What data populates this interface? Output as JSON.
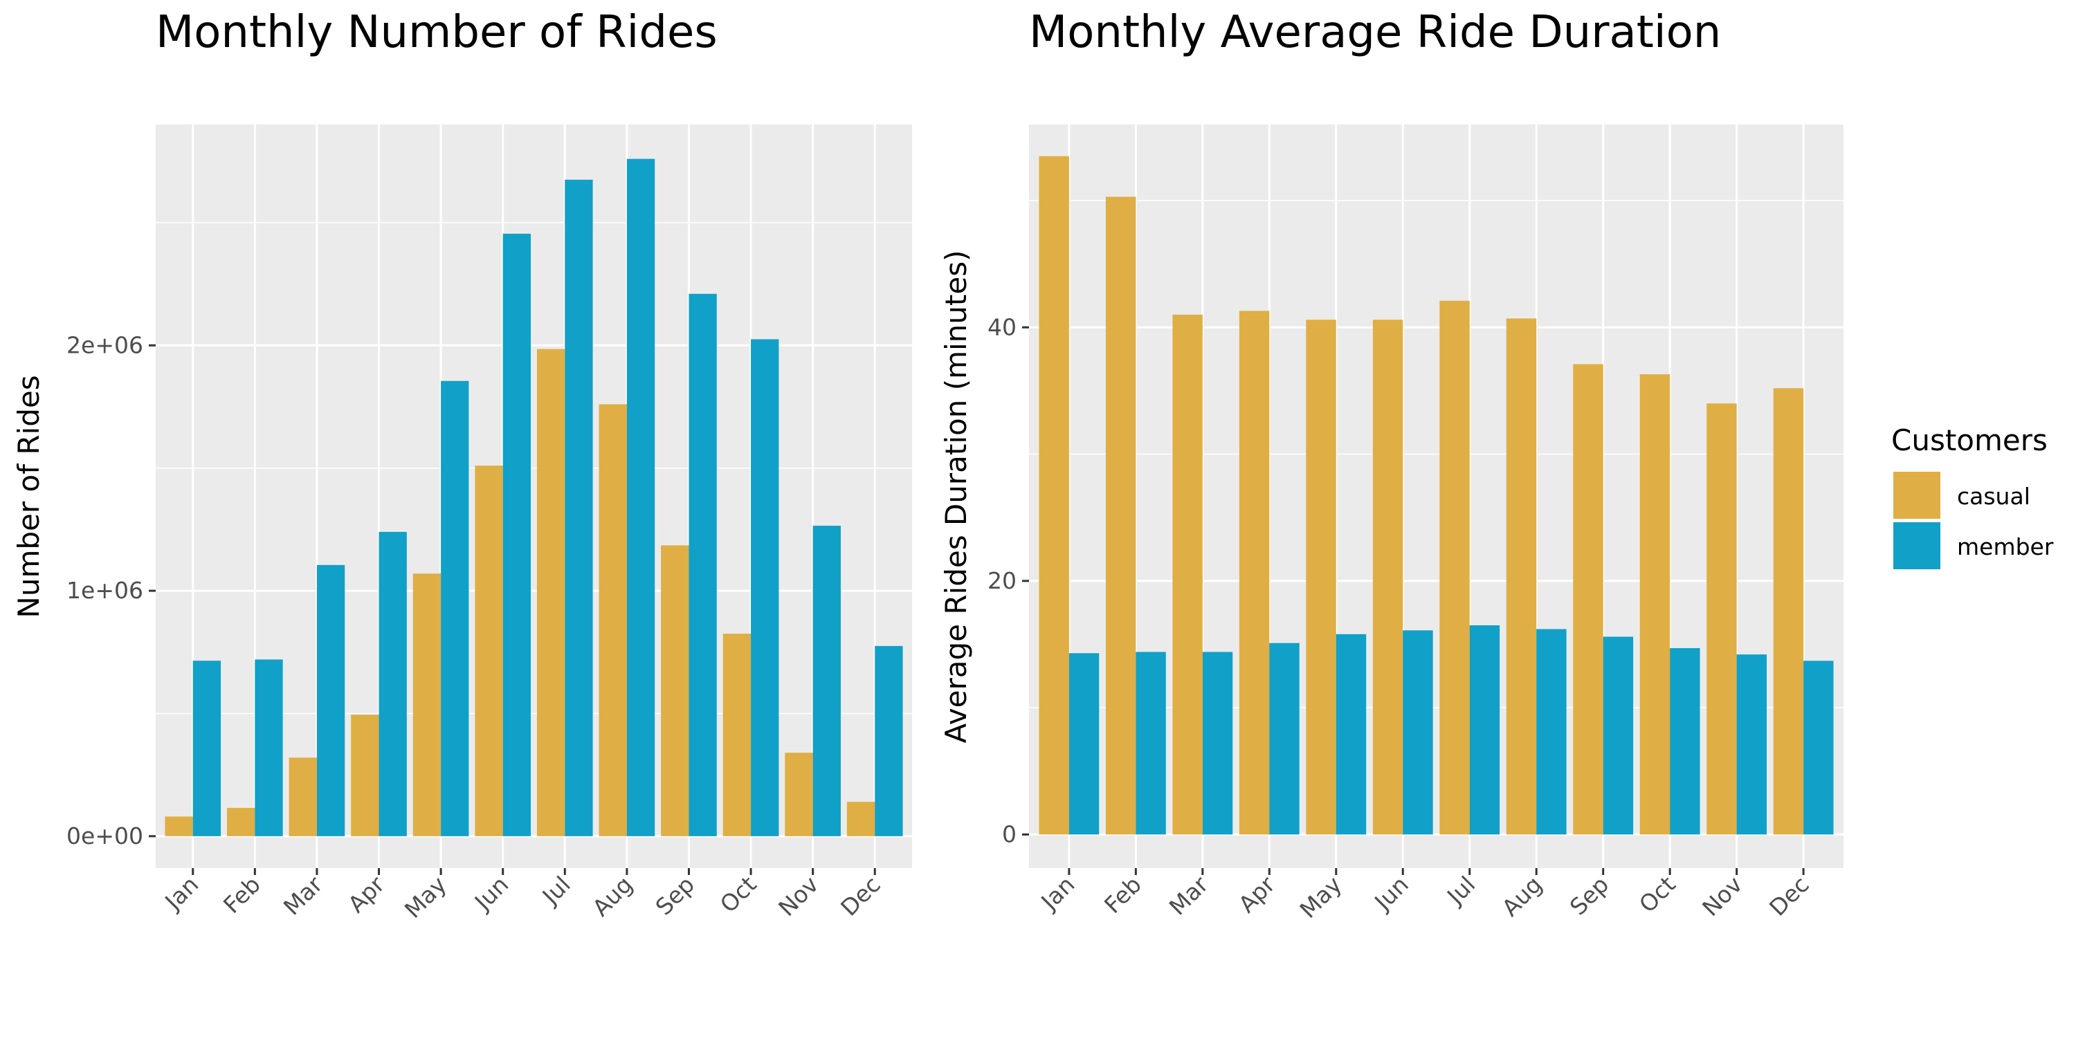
{
  "legend": {
    "title": "Customers",
    "items": [
      {
        "label": "casual",
        "color": "#DFAE44"
      },
      {
        "label": "member",
        "color": "#11A0C8"
      }
    ]
  },
  "chart_data": [
    {
      "type": "bar",
      "title": "Monthly Number of Rides",
      "xlabel": "",
      "ylabel": "Number of Rides",
      "categories": [
        "Jan",
        "Feb",
        "Mar",
        "Apr",
        "May",
        "Jun",
        "Jul",
        "Aug",
        "Sep",
        "Oct",
        "Nov",
        "Dec"
      ],
      "ylim": [
        -130000,
        2900000
      ],
      "yticks": [
        0,
        1000000,
        2000000
      ],
      "ytick_labels": [
        "0e+00",
        "1e+06",
        "2e+06"
      ],
      "series": [
        {
          "name": "casual",
          "values": [
            80000,
            115000,
            320000,
            495000,
            1070000,
            1510000,
            1985000,
            1760000,
            1185000,
            825000,
            340000,
            140000
          ]
        },
        {
          "name": "member",
          "values": [
            715000,
            720000,
            1105000,
            1240000,
            1855000,
            2455000,
            2675000,
            2760000,
            2210000,
            2025000,
            1265000,
            775000
          ]
        }
      ]
    },
    {
      "type": "bar",
      "title": "Monthly Average Ride Duration",
      "xlabel": "",
      "ylabel": "Average Rides Duration (minutes)",
      "categories": [
        "Jan",
        "Feb",
        "Mar",
        "Apr",
        "May",
        "Jun",
        "Jul",
        "Aug",
        "Sep",
        "Oct",
        "Nov",
        "Dec"
      ],
      "ylim": [
        -2.65,
        56
      ],
      "yticks": [
        0,
        20,
        40
      ],
      "ytick_labels": [
        "0",
        "20",
        "40"
      ],
      "series": [
        {
          "name": "casual",
          "values": [
            53.5,
            50.3,
            41.0,
            41.3,
            40.6,
            40.6,
            42.1,
            40.7,
            37.1,
            36.3,
            34.0,
            35.2
          ]
        },
        {
          "name": "member",
          "values": [
            14.3,
            14.4,
            14.4,
            15.1,
            15.8,
            16.1,
            16.5,
            16.2,
            15.6,
            14.7,
            14.2,
            13.7
          ]
        }
      ]
    }
  ]
}
